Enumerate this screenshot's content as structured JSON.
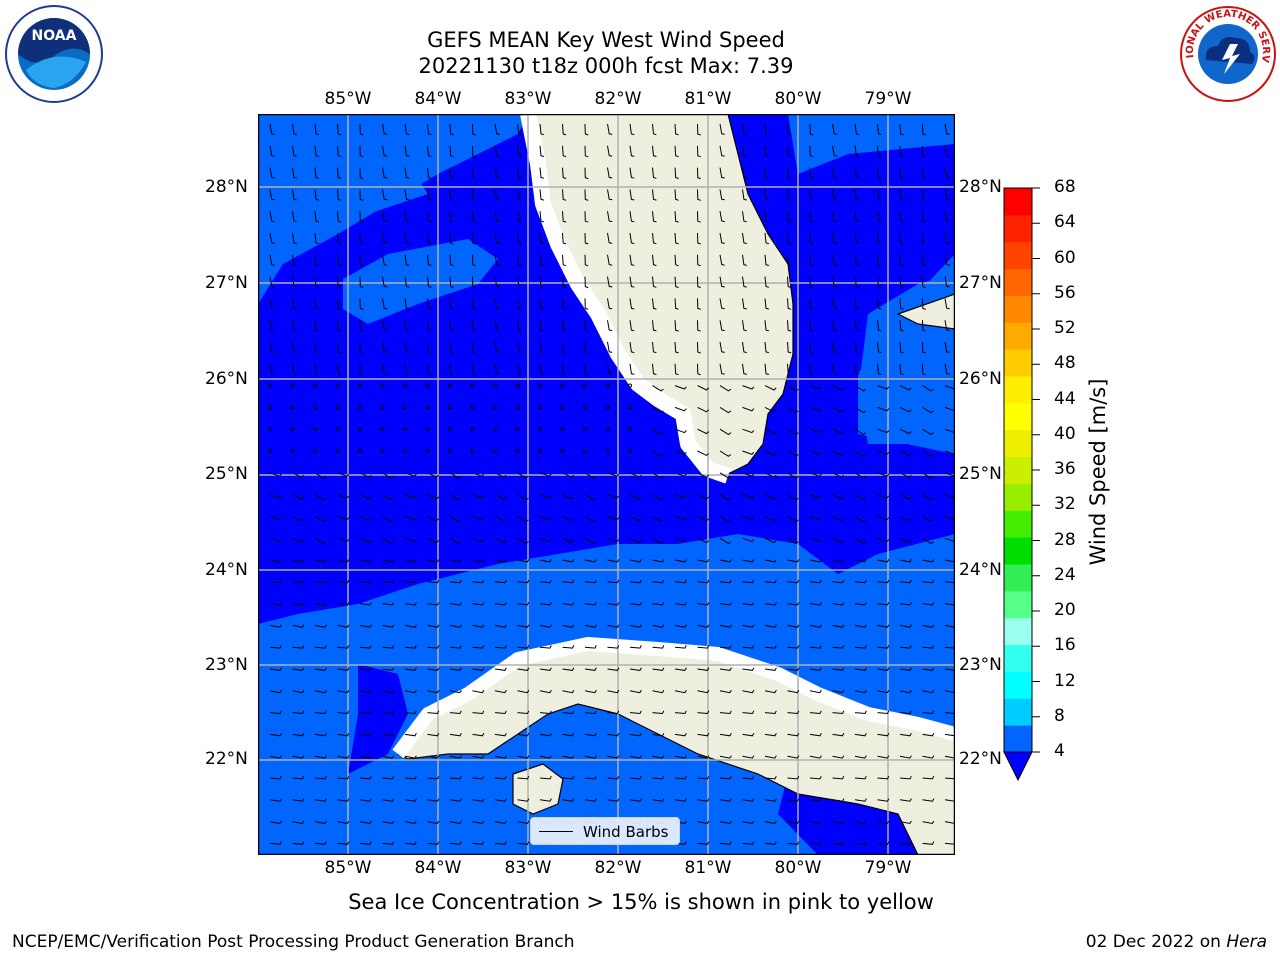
{
  "title": {
    "line1": "GEFS MEAN Key West Wind Speed",
    "line2": "20221130 t18z 000h fcst   Max: 7.39"
  },
  "logos": {
    "left": "noaa-logo",
    "left_text": "NOAA",
    "right": "nws-logo",
    "right_text": "NATIONAL WEATHER SERVICE"
  },
  "map": {
    "lon_labels": [
      "85°W",
      "84°W",
      "83°W",
      "82°W",
      "81°W",
      "80°W",
      "79°W"
    ],
    "lat_labels": [
      "28°N",
      "27°N",
      "26°N",
      "25°N",
      "24°N",
      "23°N",
      "22°N"
    ],
    "extent": {
      "lon_min": -86.0,
      "lon_max": -78.3,
      "lat_min": 21.0,
      "lat_max": 28.75
    },
    "land_color": "#efefdf",
    "grid": true
  },
  "colorbar": {
    "label": "Wind Speed [m/s]",
    "ticks": [
      "4",
      "8",
      "12",
      "16",
      "20",
      "24",
      "28",
      "32",
      "36",
      "40",
      "44",
      "48",
      "52",
      "56",
      "60",
      "64",
      "68"
    ],
    "colors": [
      "#0066ff",
      "#00ccff",
      "#00ffff",
      "#33ffee",
      "#99ffee",
      "#55ff88",
      "#33ee55",
      "#00dd00",
      "#44ee00",
      "#99ee00",
      "#ccee00",
      "#eeee00",
      "#ffff00",
      "#ffee00",
      "#ffcc00",
      "#ffaa00",
      "#ff8800",
      "#ff6600",
      "#ff4400",
      "#ff2200",
      "#ff0000"
    ]
  },
  "legend": {
    "label": "Wind Barbs"
  },
  "chart_data": {
    "type": "heatmap",
    "title": "GEFS MEAN Key West Wind Speed",
    "subtitle": "20221130 t18z 000h fcst   Max: 7.39",
    "colorbar_label": "Wind Speed [m/s]",
    "levels": [
      4,
      8,
      12,
      16,
      20,
      24,
      28,
      32,
      36,
      40,
      44,
      48,
      52,
      56,
      60,
      64,
      68
    ],
    "max": 7.39,
    "fill_colors": {
      "below_4": "#0000ff",
      "4_8": "#0066ff"
    }
  },
  "note": "Sea Ice Concentration > 15% is shown in pink to yellow",
  "footer": {
    "left": "NCEP/EMC/Verification Post Processing Product Generation Branch",
    "right_date": "02 Dec 2022 on ",
    "right_host": "Hera"
  }
}
